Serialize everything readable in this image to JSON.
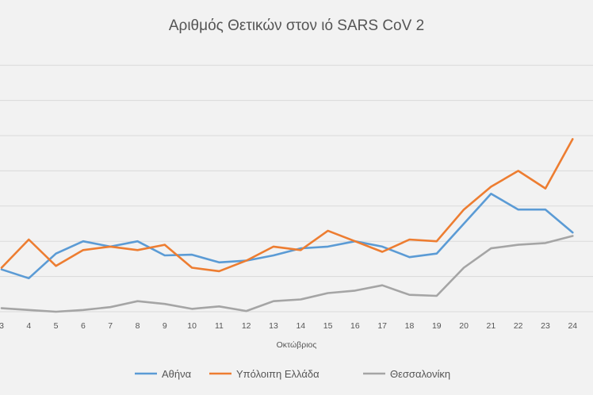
{
  "chart_data": {
    "type": "line",
    "title": "Αριθμός Θετικών στον ιό SARS CoV 2",
    "xlabel": "Οκτώβριος",
    "ylabel": "",
    "x": [
      3,
      4,
      5,
      6,
      7,
      8,
      9,
      10,
      11,
      12,
      13,
      14,
      15,
      16,
      17,
      18,
      19,
      20,
      21,
      22,
      23,
      24
    ],
    "x_tick_labels": [
      "3",
      "4",
      "5",
      "6",
      "7",
      "8",
      "9",
      "10",
      "11",
      "12",
      "13",
      "14",
      "15",
      "16",
      "17",
      "18",
      "19",
      "20",
      "21",
      "22",
      "23",
      "24"
    ],
    "series": [
      {
        "name": "Αθήνα",
        "color": "#5b9bd5",
        "values": [
          120,
          95,
          165,
          200,
          185,
          200,
          160,
          162,
          140,
          145,
          160,
          180,
          185,
          200,
          185,
          155,
          165,
          250,
          335,
          290,
          290,
          225
        ]
      },
      {
        "name": "Υπόλοιπη Ελλάδα",
        "color": "#ed7d31",
        "values": [
          125,
          205,
          130,
          175,
          185,
          175,
          190,
          125,
          115,
          145,
          185,
          175,
          230,
          200,
          170,
          205,
          200,
          290,
          355,
          400,
          350,
          490
        ]
      },
      {
        "name": "Θεσσαλονίκη",
        "color": "#a5a5a5",
        "values": [
          10,
          5,
          0,
          5,
          13,
          30,
          22,
          8,
          15,
          2,
          30,
          35,
          53,
          60,
          75,
          48,
          45,
          125,
          180,
          190,
          195,
          215
        ]
      }
    ],
    "ylim": [
      0,
      750
    ],
    "y_grid_step": 100,
    "grid": true,
    "legend_position": "bottom"
  }
}
